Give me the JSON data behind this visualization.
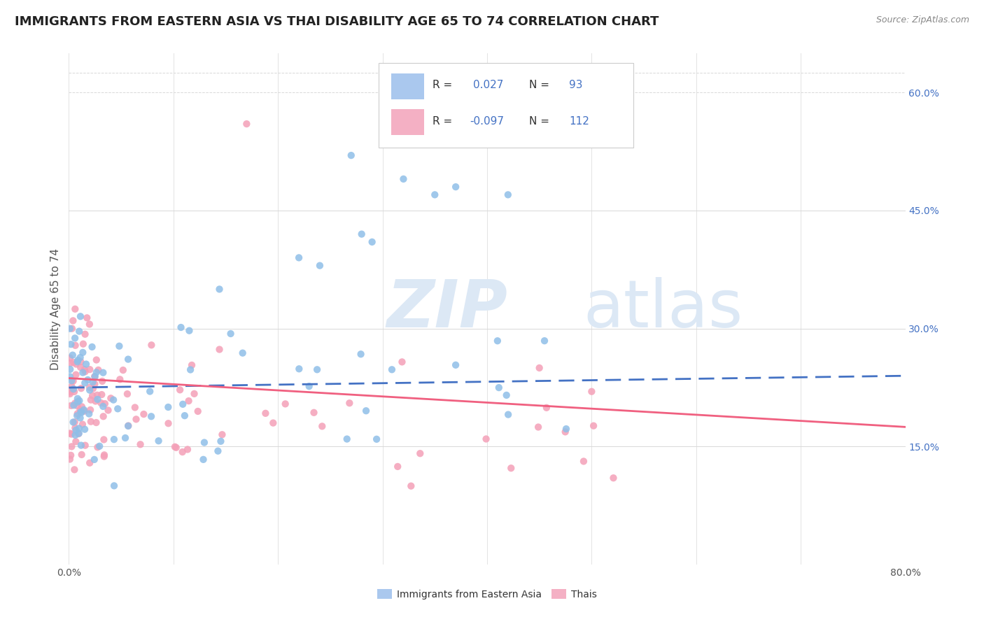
{
  "title": "IMMIGRANTS FROM EASTERN ASIA VS THAI DISABILITY AGE 65 TO 74 CORRELATION CHART",
  "source": "Source: ZipAtlas.com",
  "ylabel": "Disability Age 65 to 74",
  "xlim": [
    0.0,
    0.8
  ],
  "ylim": [
    0.0,
    0.65
  ],
  "ytick_vals": [
    0.15,
    0.3,
    0.45,
    0.6
  ],
  "correlation_blue": {
    "R": 0.027,
    "N": 93
  },
  "correlation_pink": {
    "R": -0.097,
    "N": 112
  },
  "background_color": "#ffffff",
  "grid_color": "#d8d8d8",
  "scatter_blue_color": "#8fbfe8",
  "scatter_pink_color": "#f4a0b8",
  "line_blue_color": "#4472c4",
  "line_pink_color": "#f06080",
  "watermark_color": "#dce8f5",
  "title_color": "#222222",
  "title_fontsize": 13,
  "label_fontsize": 11,
  "ytick_color": "#4472c4",
  "legend_patch_blue": "#aac8ee",
  "legend_patch_pink": "#f4b0c4"
}
